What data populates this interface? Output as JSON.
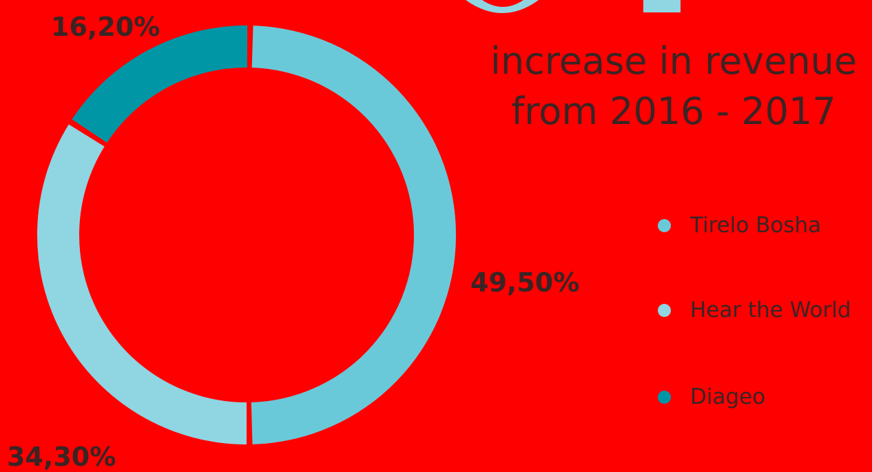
{
  "headline": {
    "line1": "increase in revenue",
    "line2": "from 2016 - 2017"
  },
  "chart_data": {
    "type": "pie",
    "categories": [
      "Tirelo Bosha",
      "Hear the World",
      "Diageo"
    ],
    "values": [
      49.5,
      34.3,
      16.2
    ],
    "value_labels": [
      "49,50%",
      "34,30%",
      "16,20%"
    ],
    "colors": [
      "#6ac9d8",
      "#8fd5e2",
      "#0096a6"
    ],
    "legend_position": "right"
  },
  "legend": [
    {
      "label": "Tirelo Bosha",
      "color": "#6ac9d8"
    },
    {
      "label": "Hear the World",
      "color": "#8fd5e2"
    },
    {
      "label": "Diageo",
      "color": "#0096a6"
    }
  ]
}
